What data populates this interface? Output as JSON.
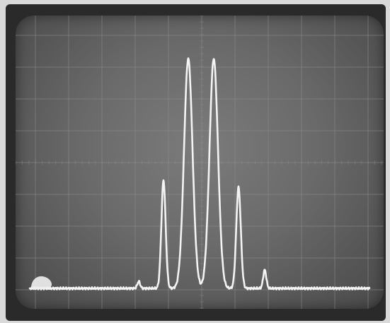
{
  "image": {
    "description_kind": "oscilloscope-spectrum-photo",
    "colors": {
      "bezel": "#2a2a2a",
      "screen": "#6a6a6a",
      "grid": "#8e8e8e",
      "trace": "#f4f4f4"
    }
  },
  "trace": {
    "peaks": [
      {
        "name": "small-left",
        "relative_height": 0.03
      },
      {
        "name": "side-left",
        "relative_height": 0.47
      },
      {
        "name": "main-left",
        "relative_height": 1.0
      },
      {
        "name": "main-right",
        "relative_height": 1.0
      },
      {
        "name": "side-right",
        "relative_height": 0.44
      },
      {
        "name": "small-right",
        "relative_height": 0.08
      }
    ]
  }
}
